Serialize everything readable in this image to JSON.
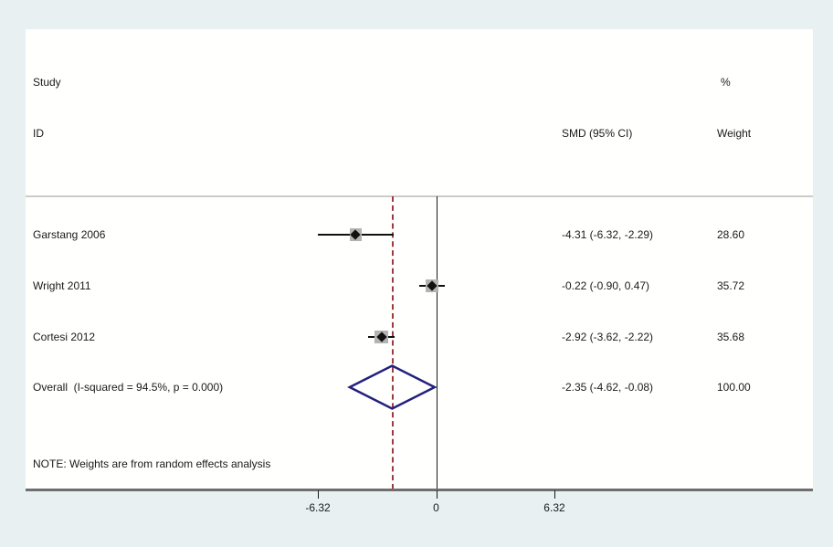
{
  "header": {
    "study_label": "Study",
    "id_label": "ID",
    "smd_label": "SMD (95% CI)",
    "percent_label": "%",
    "weight_label": "Weight"
  },
  "note": "NOTE: Weights are from random effects analysis",
  "colors": {
    "background": "#e8f0f1",
    "plot_background": "#fffffe",
    "diamond": "#22227e",
    "overall_dashed_line": "#9c3a3e",
    "marker": "#111111",
    "weight_box": "#b3b3b3",
    "axis_line": "#6e6e6e",
    "divider": "#cbcbcb"
  },
  "chart_data": {
    "type": "forest",
    "title": "",
    "xlabel": "",
    "effect_measure": "SMD",
    "x_ticks": [
      -6.32,
      0,
      6.32
    ],
    "x_tick_labels": [
      "-6.32",
      "0",
      "6.32"
    ],
    "xlim": [
      -8.2,
      10.1
    ],
    "null_line_x": 0,
    "studies": [
      {
        "label": "Garstang 2006",
        "smd": -4.31,
        "ci_low": -6.32,
        "ci_high": -2.29,
        "smd_text": "-4.31 (-6.32, -2.29)",
        "weight": 28.6,
        "weight_text": "28.60"
      },
      {
        "label": "Wright 2011",
        "smd": -0.22,
        "ci_low": -0.9,
        "ci_high": 0.47,
        "smd_text": "-0.22 (-0.90, 0.47)",
        "weight": 35.72,
        "weight_text": "35.72"
      },
      {
        "label": "Cortesi 2012",
        "smd": -2.92,
        "ci_low": -3.62,
        "ci_high": -2.22,
        "smd_text": "-2.92 (-3.62, -2.22)",
        "weight": 35.68,
        "weight_text": "35.68"
      }
    ],
    "overall": {
      "label": "Overall  (I-squared = 94.5%, p = 0.000)",
      "smd": -2.35,
      "ci_low": -4.62,
      "ci_high": -0.08,
      "smd_text": "-2.35 (-4.62, -0.08)",
      "weight": 100.0,
      "weight_text": "100.00"
    },
    "heterogeneity": {
      "i_squared_percent": 94.5,
      "p_value": "0.000"
    },
    "legend_position": "none",
    "grid": false
  }
}
